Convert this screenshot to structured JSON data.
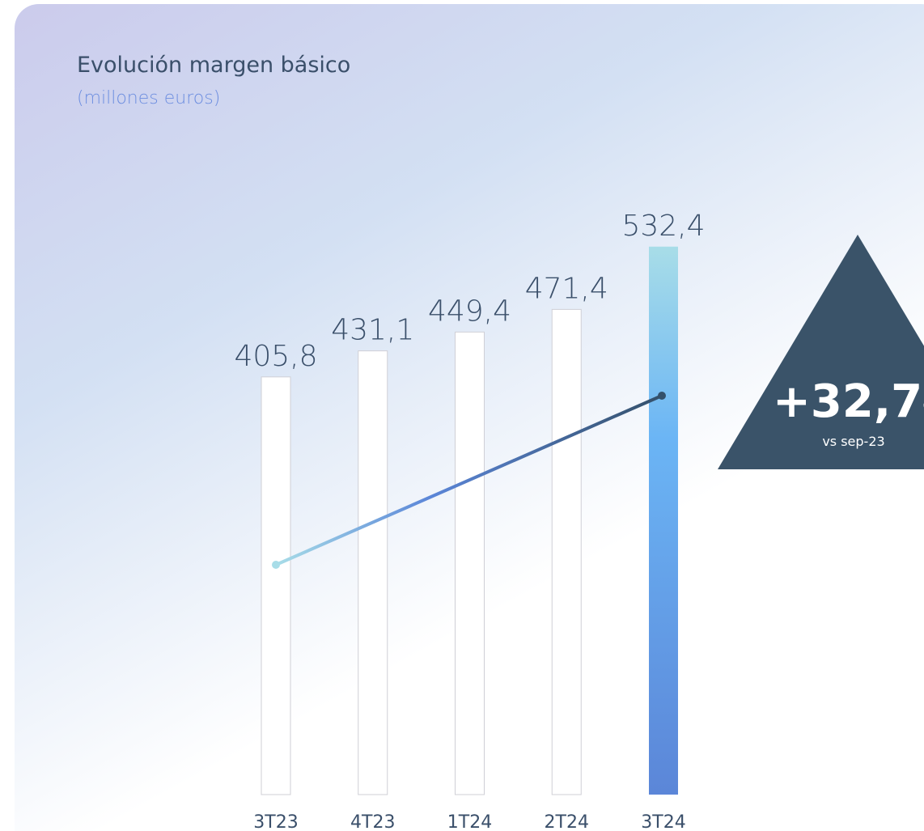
{
  "chart_data": {
    "type": "bar",
    "title": "Evolución margen básico",
    "subtitle": "(millones euros)",
    "categories": [
      "3T23",
      "4T23",
      "1T24",
      "2T24",
      "3T24"
    ],
    "values": [
      405.8,
      431.1,
      449.4,
      471.4,
      532.4
    ],
    "value_labels": [
      "405,8",
      "431,1",
      "449,4",
      "471,4",
      "532,4"
    ],
    "colors": [
      "#ffffff",
      "#ffffff",
      "#ffffff",
      "#ffffff",
      "#6bb5f5"
    ],
    "ylim": [
      0,
      600
    ],
    "annotation": {
      "growth_value": "+32,7",
      "growth_unit": "%",
      "note": "vs sep-23"
    }
  }
}
